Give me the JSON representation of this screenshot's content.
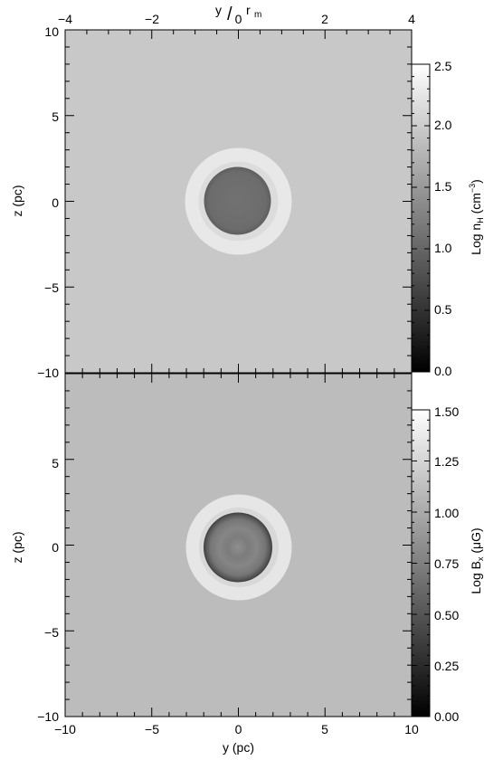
{
  "chart_data": [
    {
      "type": "heatmap",
      "panel": "density",
      "top_axis": {
        "label_main": "y",
        "label_slash": "/",
        "label_sub": "r",
        "label_sub2": "m",
        "range": [
          -4,
          4
        ],
        "ticks": [
          "−4",
          "−2",
          "0",
          "2",
          "4"
        ]
      },
      "xlim": [
        -10,
        10
      ],
      "ylim": [
        -10,
        10
      ],
      "xticks": [],
      "yticks": [
        "10",
        "5",
        "0",
        "−5",
        "−10"
      ],
      "ylabel": "z (pc)",
      "colorbar": {
        "label": "Log n",
        "label_sub": "H",
        "label_unit": " (cm",
        "label_sup": "−3",
        "label_close": ")",
        "range": [
          0.0,
          2.5
        ],
        "ticks": [
          "0.0",
          "0.5",
          "1.0",
          "1.5",
          "2.0",
          "2.5"
        ]
      },
      "structure": {
        "background_level": 1.55,
        "shell_outer_radius_pc": 3.1,
        "shell_level": 2.1,
        "core_radius_pc": 2.0,
        "core_level": 0.85
      }
    },
    {
      "type": "heatmap",
      "panel": "magnetic_field",
      "xlim": [
        -10,
        10
      ],
      "ylim": [
        -10,
        10
      ],
      "xticks": [
        "−10",
        "−5",
        "0",
        "5",
        "10"
      ],
      "yticks": [
        "5",
        "0",
        "−5",
        "−10"
      ],
      "xlabel": "y (pc)",
      "ylabel": "z (pc)",
      "colorbar": {
        "label": "Log B",
        "label_sub": "x",
        "label_unit": " (μG)",
        "range": [
          0.0,
          1.5
        ],
        "ticks": [
          "0.00",
          "0.25",
          "0.50",
          "0.75",
          "1.00",
          "1.25",
          "1.50"
        ]
      },
      "structure": {
        "background_level": 1.15,
        "shell_outer_radius_pc": 3.05,
        "shell_level": 1.42,
        "core_radius_pc": 2.0,
        "core_level": 0.78
      }
    }
  ]
}
